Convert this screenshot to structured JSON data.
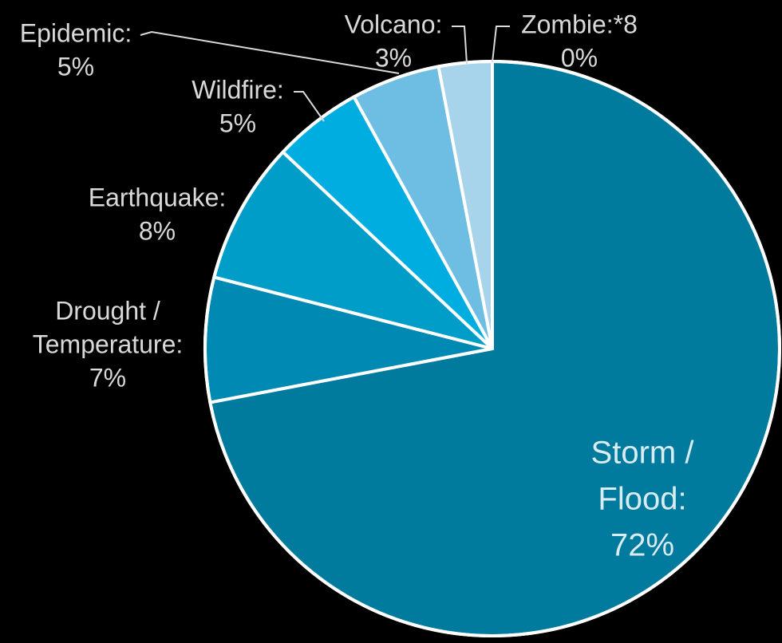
{
  "chart_data": {
    "type": "pie",
    "slices": [
      {
        "name": "Storm / Flood",
        "label_lines": [
          "Storm /",
          "Flood:",
          "72%"
        ],
        "value": 72,
        "color": "#007a9d"
      },
      {
        "name": "Drought / Temperature",
        "label_lines": [
          "Drought /",
          "Temperature:",
          "7%"
        ],
        "value": 7,
        "color": "#0089b3"
      },
      {
        "name": "Earthquake",
        "label_lines": [
          "Earthquake:",
          "8%"
        ],
        "value": 8,
        "color": "#009dc8"
      },
      {
        "name": "Wildfire",
        "label_lines": [
          "Wildfire:",
          "5%"
        ],
        "value": 5,
        "color": "#00ade0"
      },
      {
        "name": "Epidemic",
        "label_lines": [
          "Epidemic:",
          "5%"
        ],
        "value": 5,
        "color": "#6ebde3"
      },
      {
        "name": "Volcano",
        "label_lines": [
          "Volcano:",
          "3%"
        ],
        "value": 3,
        "color": "#a7d4ea"
      },
      {
        "name": "Zombie",
        "label_lines": [
          "Zombie:*8",
          "0%"
        ],
        "value": 0,
        "color": "#ffffff"
      }
    ]
  }
}
